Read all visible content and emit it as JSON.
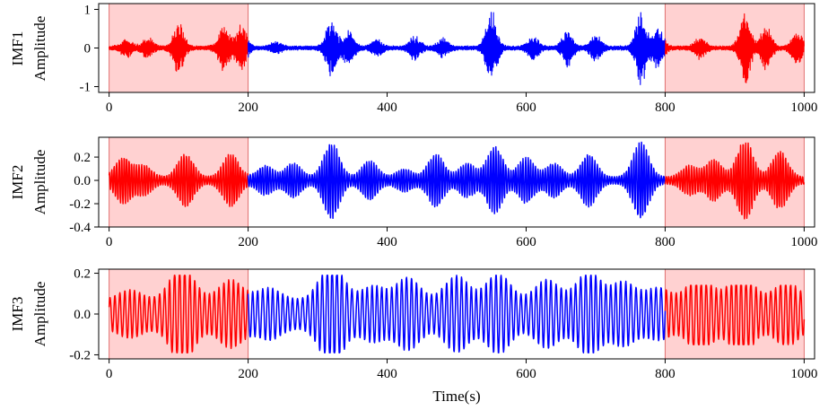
{
  "colors": {
    "edge_segment": "#ff0000",
    "middle_segment": "#0000ff",
    "shade": "#ffb3b3"
  },
  "x_axis": {
    "label": "Time(s)",
    "ticks": [
      "0",
      "200",
      "400",
      "600",
      "800",
      "1000"
    ]
  },
  "chart_data": [
    {
      "type": "line",
      "panel_label": "IMF1",
      "ylabel": "Amplitude",
      "xlim": [
        -15,
        1015
      ],
      "ylim": [
        -1.15,
        1.15
      ],
      "y_ticks": [
        {
          "value": 1,
          "label": "1"
        },
        {
          "value": 0,
          "label": "0"
        },
        {
          "value": -1,
          "label": "-1"
        }
      ],
      "x_ticks": [
        0,
        200,
        400,
        600,
        800,
        1000
      ],
      "shaded_x_ranges": [
        [
          0,
          200
        ],
        [
          800,
          1000
        ]
      ],
      "series": [
        {
          "x_range": [
            0,
            200
          ],
          "color": "#ff0000",
          "amplitude_range": [
            -0.6,
            0.7
          ],
          "oscillation": "high-frequency noise"
        },
        {
          "x_range": [
            200,
            800
          ],
          "color": "#0000ff",
          "amplitude_range": [
            -0.95,
            1.05
          ],
          "oscillation": "high-frequency noise"
        },
        {
          "x_range": [
            800,
            1000
          ],
          "color": "#ff0000",
          "amplitude_range": [
            -0.9,
            1.05
          ],
          "oscillation": "high-frequency noise"
        }
      ],
      "bursts": [
        {
          "x": 25,
          "a": 0.22
        },
        {
          "x": 55,
          "a": 0.25
        },
        {
          "x": 100,
          "a": 0.65
        },
        {
          "x": 165,
          "a": 0.6
        },
        {
          "x": 190,
          "a": 0.62
        },
        {
          "x": 240,
          "a": 0.12
        },
        {
          "x": 320,
          "a": 0.75
        },
        {
          "x": 345,
          "a": 0.45
        },
        {
          "x": 385,
          "a": 0.2
        },
        {
          "x": 440,
          "a": 0.3
        },
        {
          "x": 480,
          "a": 0.22
        },
        {
          "x": 550,
          "a": 0.95
        },
        {
          "x": 610,
          "a": 0.3
        },
        {
          "x": 660,
          "a": 0.45
        },
        {
          "x": 700,
          "a": 0.35
        },
        {
          "x": 765,
          "a": 0.95
        },
        {
          "x": 790,
          "a": 0.5
        },
        {
          "x": 850,
          "a": 0.25
        },
        {
          "x": 915,
          "a": 0.95
        },
        {
          "x": 945,
          "a": 0.55
        },
        {
          "x": 990,
          "a": 0.45
        }
      ],
      "samples_per_unit": 3,
      "burst_width": 10,
      "base_amplitude": 0.06
    },
    {
      "type": "line",
      "panel_label": "IMF2",
      "ylabel": "Amplitude",
      "xlim": [
        -15,
        1015
      ],
      "ylim": [
        -0.4,
        0.37
      ],
      "y_ticks": [
        {
          "value": 0.2,
          "label": "0.2"
        },
        {
          "value": 0.0,
          "label": "0.0"
        },
        {
          "value": -0.2,
          "label": "-0.2"
        },
        {
          "value": -0.4,
          "label": "-0.4"
        }
      ],
      "x_ticks": [
        0,
        200,
        400,
        600,
        800,
        1000
      ],
      "shaded_x_ranges": [
        [
          0,
          200
        ],
        [
          800,
          1000
        ]
      ],
      "series": [
        {
          "x_range": [
            0,
            200
          ],
          "color": "#ff0000",
          "amplitude_range": [
            -0.23,
            0.23
          ],
          "oscillation": "medium frequency"
        },
        {
          "x_range": [
            200,
            800
          ],
          "color": "#0000ff",
          "amplitude_range": [
            -0.36,
            0.34
          ],
          "oscillation": "medium frequency"
        },
        {
          "x_range": [
            800,
            1000
          ],
          "color": "#ff0000",
          "amplitude_range": [
            -0.33,
            0.32
          ],
          "oscillation": "medium frequency"
        }
      ],
      "bursts": [
        {
          "x": 20,
          "a": 0.17
        },
        {
          "x": 50,
          "a": 0.1
        },
        {
          "x": 110,
          "a": 0.2
        },
        {
          "x": 175,
          "a": 0.2
        },
        {
          "x": 225,
          "a": 0.1
        },
        {
          "x": 265,
          "a": 0.12
        },
        {
          "x": 320,
          "a": 0.3
        },
        {
          "x": 375,
          "a": 0.14
        },
        {
          "x": 425,
          "a": 0.07
        },
        {
          "x": 470,
          "a": 0.2
        },
        {
          "x": 515,
          "a": 0.12
        },
        {
          "x": 555,
          "a": 0.26
        },
        {
          "x": 600,
          "a": 0.17
        },
        {
          "x": 640,
          "a": 0.12
        },
        {
          "x": 690,
          "a": 0.2
        },
        {
          "x": 765,
          "a": 0.3
        },
        {
          "x": 835,
          "a": 0.1
        },
        {
          "x": 870,
          "a": 0.15
        },
        {
          "x": 915,
          "a": 0.32
        },
        {
          "x": 965,
          "a": 0.22
        }
      ],
      "samples_per_unit": 2,
      "burst_width": 16,
      "base_amplitude": 0.03
    },
    {
      "type": "line",
      "panel_label": "IMF3",
      "ylabel": "Amplitude",
      "xlim": [
        -15,
        1015
      ],
      "ylim": [
        -0.22,
        0.22
      ],
      "y_ticks": [
        {
          "value": 0.2,
          "label": "0.2"
        },
        {
          "value": 0.0,
          "label": "0.0"
        },
        {
          "value": -0.2,
          "label": "-0.2"
        }
      ],
      "x_ticks": [
        0,
        200,
        400,
        600,
        800,
        1000
      ],
      "shaded_x_ranges": [
        [
          0,
          200
        ],
        [
          800,
          1000
        ]
      ],
      "series": [
        {
          "x_range": [
            0,
            200
          ],
          "color": "#ff0000",
          "amplitude_range": [
            -0.19,
            0.19
          ],
          "oscillation": "lower frequency"
        },
        {
          "x_range": [
            200,
            800
          ],
          "color": "#0000ff",
          "amplitude_range": [
            -0.19,
            0.19
          ],
          "oscillation": "lower frequency"
        },
        {
          "x_range": [
            800,
            1000
          ],
          "color": "#ff0000",
          "amplitude_range": [
            -0.15,
            0.14
          ],
          "oscillation": "lower frequency"
        }
      ],
      "bursts": [
        {
          "x": 30,
          "a": 0.05
        },
        {
          "x": 105,
          "a": 0.17
        },
        {
          "x": 175,
          "a": 0.1
        },
        {
          "x": 230,
          "a": 0.06
        },
        {
          "x": 320,
          "a": 0.18
        },
        {
          "x": 380,
          "a": 0.07
        },
        {
          "x": 430,
          "a": 0.11
        },
        {
          "x": 500,
          "a": 0.12
        },
        {
          "x": 560,
          "a": 0.13
        },
        {
          "x": 630,
          "a": 0.1
        },
        {
          "x": 690,
          "a": 0.14
        },
        {
          "x": 740,
          "a": 0.09
        },
        {
          "x": 790,
          "a": 0.06
        },
        {
          "x": 850,
          "a": 0.12
        },
        {
          "x": 910,
          "a": 0.13
        },
        {
          "x": 975,
          "a": 0.09
        }
      ],
      "samples_per_unit": 2,
      "burst_width": 24,
      "base_amplitude": 0.07
    }
  ]
}
